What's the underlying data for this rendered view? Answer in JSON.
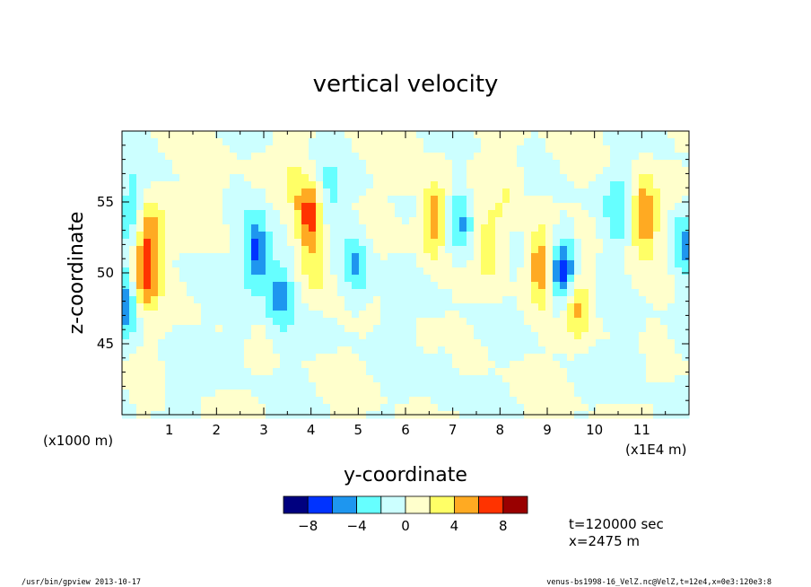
{
  "chart_data": {
    "type": "heatmap",
    "title": "vertical velocity",
    "xlabel": "y-coordinate",
    "ylabel": "z-coordinate",
    "x_unit_left": "(x1000 m)",
    "x_unit_right": "(x1E4 m)",
    "xlim": [
      0,
      12
    ],
    "ylim": [
      40,
      60
    ],
    "x_ticks": [
      1,
      2,
      3,
      4,
      5,
      6,
      7,
      8,
      9,
      10,
      11
    ],
    "x_tick_labels": [
      "1",
      "2",
      "3",
      "4",
      "5",
      "6",
      "7",
      "8",
      "9",
      "10",
      "11"
    ],
    "y_ticks": [
      45,
      50,
      55
    ],
    "y_tick_labels": [
      "45",
      "50",
      "55"
    ],
    "colorbar": {
      "colors": [
        "#00007f",
        "#0033ff",
        "#1e96ef",
        "#66ffff",
        "#ccffff",
        "#ffffcc",
        "#ffff66",
        "#ffaa22",
        "#ff3300",
        "#990000"
      ],
      "ticks": [
        -8,
        -4,
        0,
        4,
        8
      ],
      "tick_labels": [
        "−8",
        "−4",
        "0",
        "4",
        "8"
      ]
    },
    "features": [
      {
        "y": 0.25,
        "z": 54.5,
        "w": -3.5
      },
      {
        "y": 0.05,
        "z": 48.0,
        "w": -5.5
      },
      {
        "y": 0.5,
        "z": 50.0,
        "w": 6.5
      },
      {
        "y": 0.55,
        "z": 53.0,
        "w": 4.5
      },
      {
        "y": 1.9,
        "z": 55.5,
        "w": 2.5
      },
      {
        "y": 2.85,
        "z": 51.5,
        "w": -7.0
      },
      {
        "y": 3.35,
        "z": 48.5,
        "w": -5.0
      },
      {
        "y": 3.95,
        "z": 54.0,
        "w": 7.0
      },
      {
        "y": 4.4,
        "z": 55.5,
        "w": -2.5
      },
      {
        "y": 4.1,
        "z": 50.5,
        "w": 3.0
      },
      {
        "y": 4.95,
        "z": 50.5,
        "w": -4.5
      },
      {
        "y": 6.6,
        "z": 54.0,
        "w": 6.0
      },
      {
        "y": 7.15,
        "z": 53.5,
        "w": -4.5
      },
      {
        "y": 7.8,
        "z": 52.0,
        "w": 3.5
      },
      {
        "y": 8.2,
        "z": 56.0,
        "w": 2.0
      },
      {
        "y": 8.85,
        "z": 50.5,
        "w": 6.0
      },
      {
        "y": 9.35,
        "z": 50.0,
        "w": -8.5
      },
      {
        "y": 9.6,
        "z": 48.0,
        "w": 5.5
      },
      {
        "y": 10.5,
        "z": 54.5,
        "w": -3.5
      },
      {
        "y": 11.05,
        "z": 54.0,
        "w": 6.5
      },
      {
        "y": 11.9,
        "z": 52.0,
        "w": -4.5
      },
      {
        "y": 2.5,
        "z": 46.5,
        "w": -1.5
      },
      {
        "y": 5.7,
        "z": 45.5,
        "w": -1.5
      },
      {
        "y": 6.8,
        "z": 42.5,
        "w": -1.5
      },
      {
        "y": 1.2,
        "z": 43.0,
        "w": -1.5
      },
      {
        "y": 10.8,
        "z": 44.0,
        "w": -1.5
      },
      {
        "y": 3.6,
        "z": 57.5,
        "w": 1.5
      },
      {
        "y": 6.0,
        "z": 58.0,
        "w": 1.2
      }
    ]
  },
  "annotation": {
    "time": "t=120000 sec",
    "position": "x=2475 m"
  },
  "footer": {
    "left": "/usr/bin/gpview   2013-10-17",
    "right": "venus-bs1998-16_VelZ.nc@VelZ,t=12e4,x=0e3:120e3:8"
  }
}
